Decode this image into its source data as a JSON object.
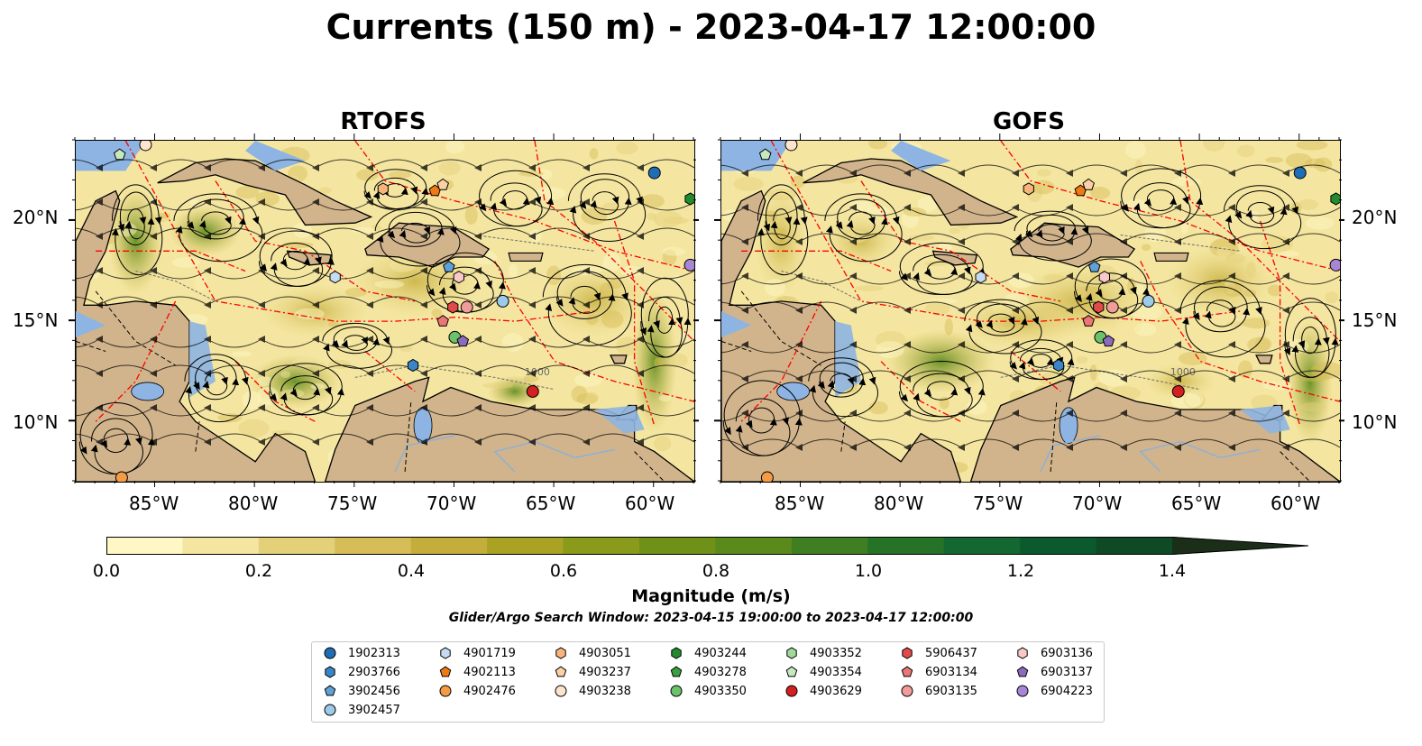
{
  "title": "Currents (150 m) - 2023-04-17 12:00:00",
  "panels": [
    {
      "title": "RTOFS"
    },
    {
      "title": "GOFS"
    }
  ],
  "lat_ticks": [
    "20°N",
    "15°N",
    "10°N"
  ],
  "lon_ticks": [
    "85°W",
    "80°W",
    "75°W",
    "70°W",
    "65°W",
    "60°W"
  ],
  "contour_labels": [
    "1000"
  ],
  "colorbar": {
    "label": "Magnitude (m/s)",
    "ticks": [
      "0.0",
      "0.2",
      "0.4",
      "0.6",
      "0.8",
      "1.0",
      "1.2",
      "1.4"
    ],
    "min": 0.0,
    "max": 1.6,
    "extend": "max",
    "colors": [
      "#fff8c5",
      "#f4e6a0",
      "#e5d07a",
      "#d6bd57",
      "#c4ad3a",
      "#a9a223",
      "#8a9a1a",
      "#6f9118",
      "#5a8a1c",
      "#3f7f22",
      "#267328",
      "#126830",
      "#0b5a2d",
      "#0f4a26",
      "#143c20",
      "#1a2e18"
    ]
  },
  "search_window": "Glider/Argo Search Window: 2023-04-15 19:00:00 to 2023-04-17 12:00:00",
  "colors": {
    "land": "#d1b48c",
    "lake": "#8db4e2",
    "coast": "#000000",
    "eez_boundary": "#ff0000",
    "streamline": "#000000"
  },
  "floats": [
    {
      "id": "1902313",
      "shape": "circle",
      "color": "#1f6eb5"
    },
    {
      "id": "2903766",
      "shape": "hexagon",
      "color": "#3a85c7"
    },
    {
      "id": "3902456",
      "shape": "pentagon",
      "color": "#5fa0d8"
    },
    {
      "id": "3902457",
      "shape": "circle",
      "color": "#9ecae9"
    },
    {
      "id": "4901719",
      "shape": "hexagon",
      "color": "#c6dbef"
    },
    {
      "id": "4902113",
      "shape": "pentagon",
      "color": "#f07a12"
    },
    {
      "id": "4902476",
      "shape": "circle",
      "color": "#f59a45"
    },
    {
      "id": "4903051",
      "shape": "hexagon",
      "color": "#f7b57c"
    },
    {
      "id": "4903237",
      "shape": "pentagon",
      "color": "#fbd0a5"
    },
    {
      "id": "4903238",
      "shape": "circle",
      "color": "#fde4cc"
    },
    {
      "id": "4903244",
      "shape": "hexagon",
      "color": "#238b2f"
    },
    {
      "id": "4903278",
      "shape": "pentagon",
      "color": "#3aa13d"
    },
    {
      "id": "4903350",
      "shape": "circle",
      "color": "#6cc16a"
    },
    {
      "id": "4903352",
      "shape": "hexagon",
      "color": "#a1d99b"
    },
    {
      "id": "4903354",
      "shape": "pentagon",
      "color": "#c7e9c0"
    },
    {
      "id": "4903629",
      "shape": "circle",
      "color": "#d42020"
    },
    {
      "id": "5906437",
      "shape": "hexagon",
      "color": "#e04a4a"
    },
    {
      "id": "6903134",
      "shape": "pentagon",
      "color": "#ec7676"
    },
    {
      "id": "6903135",
      "shape": "circle",
      "color": "#f29b9b"
    },
    {
      "id": "6903136",
      "shape": "hexagon",
      "color": "#f9c8c8"
    },
    {
      "id": "6903137",
      "shape": "pentagon",
      "color": "#8c6bbd"
    },
    {
      "id": "6904223",
      "shape": "circle",
      "color": "#a886d6"
    }
  ],
  "float_positions": [
    {
      "id": "4903354",
      "lon": -86.8,
      "lat": 23.3
    },
    {
      "id": "4903238",
      "lon": -85.5,
      "lat": 23.8
    },
    {
      "id": "4902476",
      "lon": -86.7,
      "lat": 7.2
    },
    {
      "id": "4903051",
      "lon": -73.6,
      "lat": 21.6
    },
    {
      "id": "4902113",
      "lon": -71.0,
      "lat": 21.5
    },
    {
      "id": "4903237",
      "lon": -70.6,
      "lat": 21.8
    },
    {
      "id": "1902313",
      "lon": -60.0,
      "lat": 22.4
    },
    {
      "id": "4903244",
      "lon": -58.2,
      "lat": 21.1
    },
    {
      "id": "6904223",
      "lon": -58.2,
      "lat": 17.8
    },
    {
      "id": "4901719",
      "lon": -76.0,
      "lat": 17.2
    },
    {
      "id": "3902456",
      "lon": -70.3,
      "lat": 17.7
    },
    {
      "id": "6903136",
      "lon": -69.8,
      "lat": 17.2
    },
    {
      "id": "3902457",
      "lon": -67.6,
      "lat": 16.0
    },
    {
      "id": "5906437",
      "lon": -70.1,
      "lat": 15.7
    },
    {
      "id": "6903135",
      "lon": -69.4,
      "lat": 15.7
    },
    {
      "id": "6903134",
      "lon": -70.6,
      "lat": 15.0
    },
    {
      "id": "4903350",
      "lon": -70.0,
      "lat": 14.2
    },
    {
      "id": "6903137",
      "lon": -69.6,
      "lat": 14.0
    },
    {
      "id": "2903766",
      "lon": -72.1,
      "lat": 12.8
    },
    {
      "id": "4903629",
      "lon": -66.1,
      "lat": 11.5
    }
  ]
}
